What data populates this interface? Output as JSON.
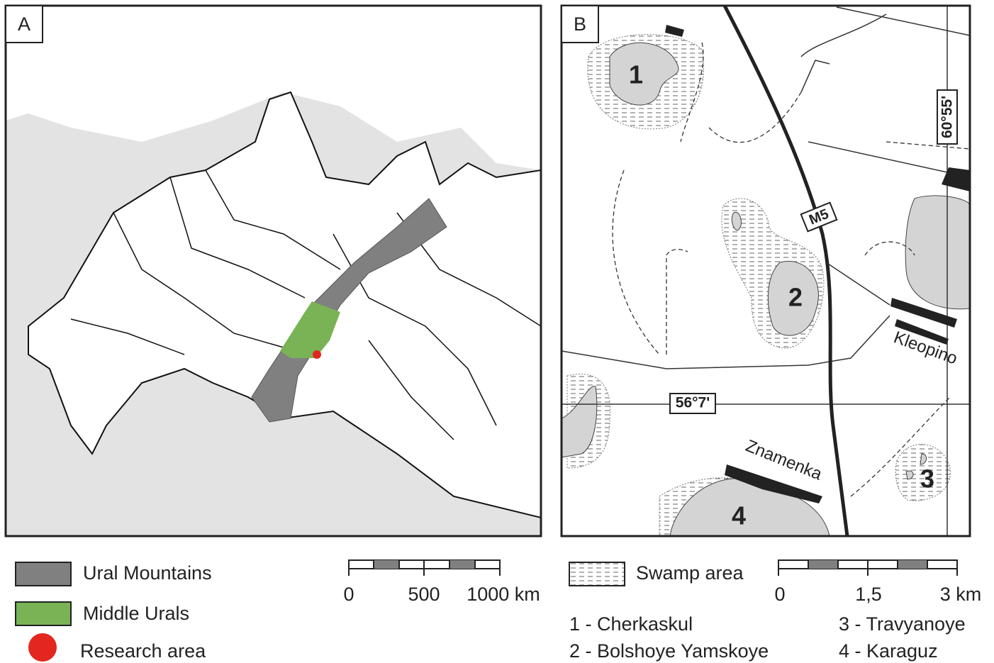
{
  "panel_a": {
    "label": "A",
    "legend": {
      "ural_mountains": "Ural Mountains",
      "middle_urals": "Middle Urals",
      "research_area": "Research area"
    },
    "scale": {
      "labels": [
        "0",
        "500",
        "1000 km"
      ]
    }
  },
  "panel_b": {
    "label": "B",
    "map_labels": {
      "lake_1": "1",
      "lake_2": "2",
      "lake_3": "3",
      "lake_4": "4",
      "road": "M5",
      "kleopino": "Kleopino",
      "znamenka": "Znamenka",
      "latitude": "56°7'",
      "longitude": "60°55'"
    },
    "legend": {
      "swamp": "Swamp area"
    },
    "scale": {
      "labels": [
        "0",
        "1,5",
        "3 km"
      ]
    },
    "lakes": [
      "1 - Cherkaskul",
      "2 - Bolshoye Yamskoye",
      "3 - Travyanoye",
      "4 - Karaguz"
    ]
  }
}
